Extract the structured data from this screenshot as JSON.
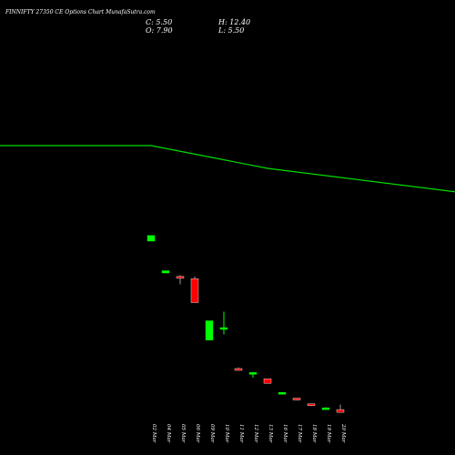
{
  "header": {
    "title": "FINNIFTY 27350 CE Options Chart MunafaSutra.com",
    "close_text": "C: 5.50",
    "open_text": "O: 7.90",
    "high_text": "H: 12.40",
    "low_text": "L: 5.50"
  },
  "colors": {
    "up": "#00ff00",
    "down": "#ff0000",
    "line": "#00dd00",
    "background": "#000000",
    "text": "#ffffff"
  },
  "chart_data": {
    "type": "candlestick",
    "categories": [
      "02 Mar",
      "04 Mar",
      "05 Mar",
      "06 Mar",
      "09 Mar",
      "10 Mar",
      "11 Mar",
      "12 Mar",
      "13 Mar",
      "16 Mar",
      "17 Mar",
      "18 Mar",
      "19 Mar",
      "20 Mar"
    ],
    "candles": [
      {
        "date": "02 Mar",
        "open": 156.0,
        "high": 161.0,
        "low": 156.0,
        "close": 161.0
      },
      {
        "date": "04 Mar",
        "open": 128.0,
        "high": 130.0,
        "low": 128.0,
        "close": 130.0
      },
      {
        "date": "05 Mar",
        "open": 125.0,
        "high": 126.0,
        "low": 118.0,
        "close": 124.0
      },
      {
        "date": "06 Mar",
        "open": 123.0,
        "high": 125.0,
        "low": 102.0,
        "close": 102.0
      },
      {
        "date": "09 Mar",
        "open": 69.0,
        "high": 86.0,
        "low": 69.0,
        "close": 86.0
      },
      {
        "date": "10 Mar",
        "open": 80.0,
        "high": 94.0,
        "low": 74.0,
        "close": 80.0
      },
      {
        "date": "11 Mar",
        "open": 44.0,
        "high": 45.0,
        "low": 43.0,
        "close": 43.0
      },
      {
        "date": "12 Mar",
        "open": 40.0,
        "high": 41.0,
        "low": 36.0,
        "close": 40.5
      },
      {
        "date": "13 Mar",
        "open": 35.0,
        "high": 35.0,
        "low": 31.0,
        "close": 31.0
      },
      {
        "date": "16 Mar",
        "open": 22.0,
        "high": 23.0,
        "low": 21.5,
        "close": 23.0
      },
      {
        "date": "17 Mar",
        "open": 18.0,
        "high": 18.0,
        "low": 16.0,
        "close": 16.5
      },
      {
        "date": "18 Mar",
        "open": 13.0,
        "high": 13.0,
        "low": 11.0,
        "close": 11.5
      },
      {
        "date": "19 Mar",
        "open": 8.5,
        "high": 10.0,
        "low": 8.0,
        "close": 9.5
      },
      {
        "date": "20 Mar",
        "open": 7.9,
        "high": 12.4,
        "low": 5.5,
        "close": 5.5
      }
    ],
    "moving_average": [
      {
        "date": "02 Mar",
        "value": 240
      },
      {
        "date": "09 Mar",
        "value": 230
      },
      {
        "date": "13 Mar",
        "value": 220
      },
      {
        "date": "20 Mar",
        "value": 212
      }
    ],
    "title": "FINNIFTY 27350 CE Options Chart MunafaSutra.com",
    "xlabel": "",
    "ylabel": "",
    "grid": false
  }
}
